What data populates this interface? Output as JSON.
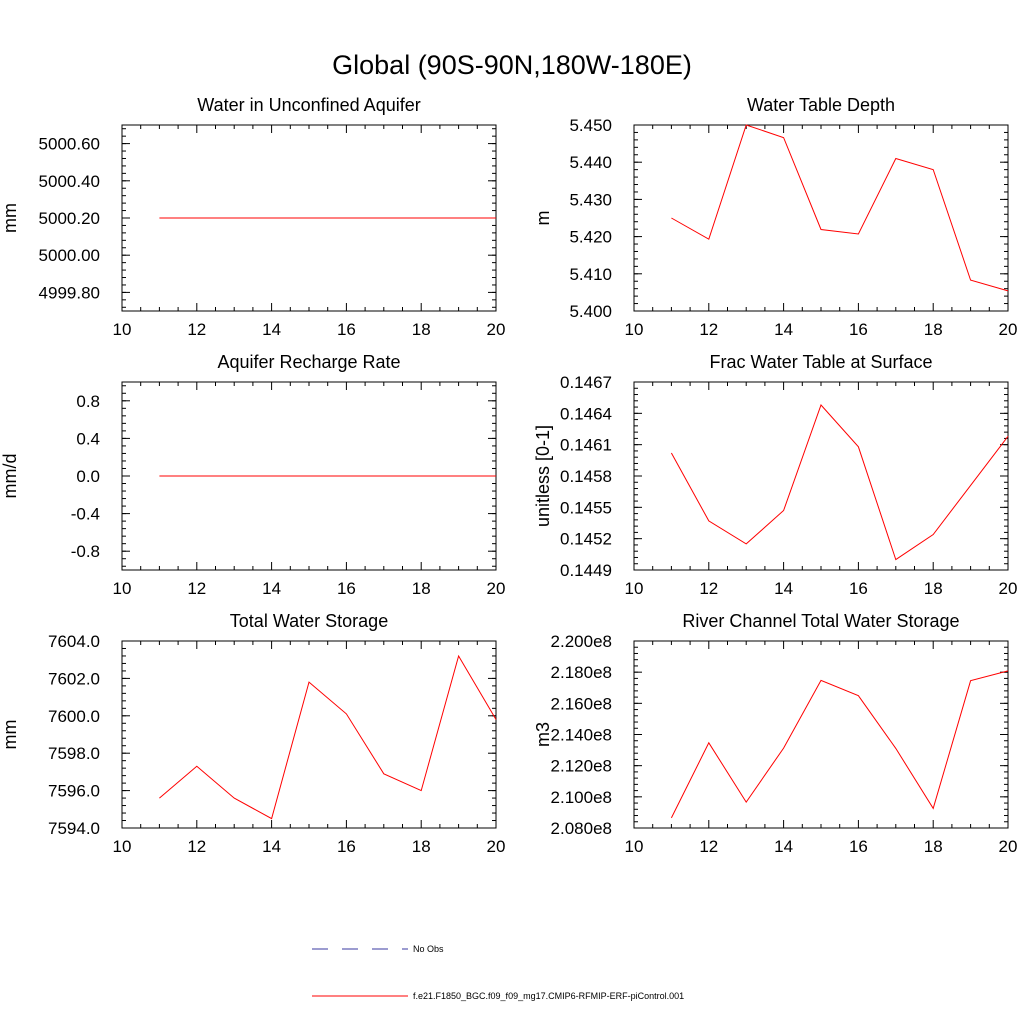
{
  "figure": {
    "title": "Global (90S-90N,180W-180E)"
  },
  "colors": {
    "model": "#ff0000",
    "obs": "#3a3aa0",
    "axis": "#000000"
  },
  "chart_data": [
    {
      "type": "line",
      "title": "Water in Unconfined Aquifer",
      "xlabel": "",
      "ylabel": "mm",
      "xlim": [
        10,
        20
      ],
      "ylim": [
        4999.7,
        5000.7
      ],
      "xticks": [
        10,
        12,
        14,
        16,
        18,
        20
      ],
      "yticks": [
        4999.8,
        5000.0,
        5000.2,
        5000.4,
        5000.6
      ],
      "ytick_labels": [
        "4999.80",
        "5000.00",
        "5000.20",
        "5000.40",
        "5000.60"
      ],
      "series": [
        {
          "x": [
            11,
            12,
            13,
            14,
            15,
            16,
            17,
            18,
            19,
            20
          ],
          "values": [
            5000.2,
            5000.2,
            5000.2,
            5000.2,
            5000.2,
            5000.2,
            5000.2,
            5000.2,
            5000.2,
            5000.2
          ]
        }
      ]
    },
    {
      "type": "line",
      "title": "Water Table Depth",
      "xlabel": "",
      "ylabel": "m",
      "xlim": [
        10,
        20
      ],
      "ylim": [
        5.4,
        5.45
      ],
      "xticks": [
        10,
        12,
        14,
        16,
        18,
        20
      ],
      "yticks": [
        5.4,
        5.41,
        5.42,
        5.43,
        5.44,
        5.45
      ],
      "ytick_labels": [
        "5.400",
        "5.410",
        "5.420",
        "5.430",
        "5.440",
        "5.450"
      ],
      "series": [
        {
          "x": [
            11,
            12,
            13,
            14,
            15,
            16,
            17,
            18,
            19,
            20
          ],
          "values": [
            5.425,
            5.4193,
            5.45,
            5.4466,
            5.4219,
            5.4207,
            5.441,
            5.438,
            5.4083,
            5.4054
          ]
        }
      ]
    },
    {
      "type": "line",
      "title": "Aquifer Recharge Rate",
      "xlabel": "",
      "ylabel": "mm/d",
      "xlim": [
        10,
        20
      ],
      "ylim": [
        -1.0,
        1.0
      ],
      "xticks": [
        10,
        12,
        14,
        16,
        18,
        20
      ],
      "yticks": [
        -0.8,
        -0.4,
        0.0,
        0.4,
        0.8
      ],
      "ytick_labels": [
        "-0.8",
        "-0.4",
        "0.0",
        "0.4",
        "0.8"
      ],
      "series": [
        {
          "x": [
            11,
            12,
            13,
            14,
            15,
            16,
            17,
            18,
            19,
            20
          ],
          "values": [
            0,
            0,
            0,
            0,
            0,
            0,
            0,
            0,
            0,
            0
          ]
        }
      ]
    },
    {
      "type": "line",
      "title": "Frac Water Table at Surface",
      "xlabel": "",
      "ylabel": "unitless [0-1]",
      "xlim": [
        10,
        20
      ],
      "ylim": [
        0.1449,
        0.1467
      ],
      "xticks": [
        10,
        12,
        14,
        16,
        18,
        20
      ],
      "yticks": [
        0.1449,
        0.1452,
        0.1455,
        0.1458,
        0.1461,
        0.1464,
        0.1467
      ],
      "ytick_labels": [
        "0.1449",
        "0.1452",
        "0.1455",
        "0.1458",
        "0.1461",
        "0.1464",
        "0.1467"
      ],
      "series": [
        {
          "x": [
            11,
            12,
            13,
            14,
            15,
            16,
            17,
            18,
            19,
            20
          ],
          "values": [
            0.14602,
            0.14537,
            0.14515,
            0.14547,
            0.14648,
            0.14608,
            0.145,
            0.14524,
            0.14571,
            0.14618
          ]
        }
      ]
    },
    {
      "type": "line",
      "title": "Total Water Storage",
      "xlabel": "",
      "ylabel": "mm",
      "xlim": [
        10,
        20
      ],
      "ylim": [
        7594.0,
        7604.0
      ],
      "xticks": [
        10,
        12,
        14,
        16,
        18,
        20
      ],
      "yticks": [
        7594.0,
        7596.0,
        7598.0,
        7600.0,
        7602.0,
        7604.0
      ],
      "ytick_labels": [
        "7594.0",
        "7596.0",
        "7598.0",
        "7600.0",
        "7602.0",
        "7604.0"
      ],
      "series": [
        {
          "x": [
            11,
            12,
            13,
            14,
            15,
            16,
            17,
            18,
            19,
            20
          ],
          "values": [
            7595.6,
            7597.3,
            7595.6,
            7594.5,
            7601.8,
            7600.1,
            7596.9,
            7596.0,
            7603.2,
            7599.8
          ]
        }
      ]
    },
    {
      "type": "line",
      "title": "River Channel Total Water Storage",
      "xlabel": "",
      "ylabel": "m3",
      "xlim": [
        10,
        20
      ],
      "ylim": [
        208000000.0,
        220000000.0
      ],
      "xticks": [
        10,
        12,
        14,
        16,
        18,
        20
      ],
      "yticks": [
        208000000.0,
        210000000.0,
        212000000.0,
        214000000.0,
        216000000.0,
        218000000.0,
        220000000.0
      ],
      "ytick_labels": [
        "2.080e8",
        "2.100e8",
        "2.120e8",
        "2.140e8",
        "2.160e8",
        "2.180e8",
        "2.200e8"
      ],
      "series": [
        {
          "x": [
            11,
            12,
            13,
            14,
            15,
            16,
            17,
            18,
            19,
            20
          ],
          "values": [
            208650000.0,
            213470000.0,
            209660000.0,
            213130000.0,
            217470000.0,
            216490000.0,
            213110000.0,
            209260000.0,
            217450000.0,
            218080000.0
          ]
        }
      ]
    }
  ],
  "legend": {
    "position": "bottom-center",
    "entries": [
      {
        "label": "No Obs",
        "style": "dashed",
        "color": "#3a3aa0"
      },
      {
        "label": "f.e21.F1850_BGC.f09_f09_mg17.CMIP6-RFMIP-ERF-piControl.001",
        "style": "solid",
        "color": "#ff0000"
      }
    ]
  }
}
